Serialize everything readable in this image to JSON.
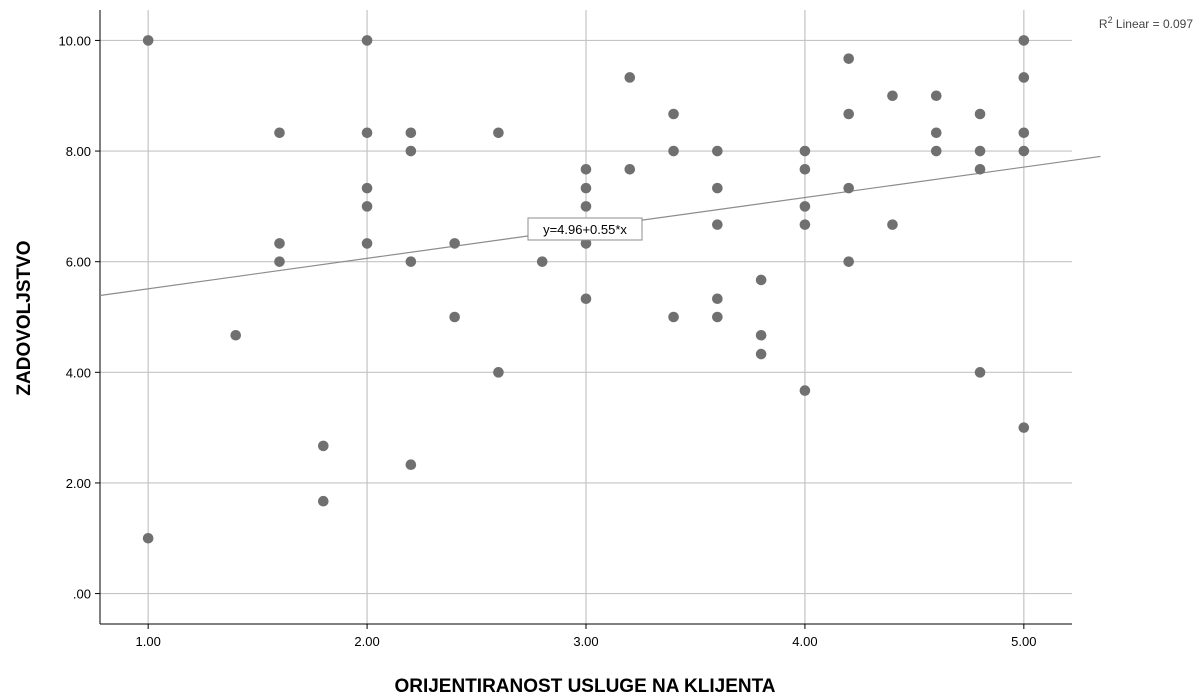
{
  "chart_data": {
    "type": "scatter",
    "title": "",
    "xlabel": "ORIJENTIRANOST USLUGE NA KLIJENTA",
    "ylabel": "ZADOVOLJSTVO",
    "xlim": [
      0.78,
      5.22
    ],
    "ylim": [
      -0.55,
      10.55
    ],
    "x_ticks": [
      "1.00",
      "2.00",
      "3.00",
      "4.00",
      "5.00"
    ],
    "y_ticks": [
      ".00",
      "2.00",
      "4.00",
      "6.00",
      "8.00",
      "10.00"
    ],
    "x_tick_values": [
      1,
      2,
      3,
      4,
      5
    ],
    "y_tick_values": [
      0,
      2,
      4,
      6,
      8,
      10
    ],
    "grid": true,
    "point_color": "#707070",
    "fit_line": {
      "intercept": 4.96,
      "slope": 0.55,
      "equation_label": "y=4.96+0.55*x",
      "r2_prefix": "R",
      "r2_sup": "2",
      "r2_label": " Linear = 0.097",
      "color": "#8c8c8c"
    },
    "points": [
      {
        "x": 1.0,
        "y": 10.0
      },
      {
        "x": 1.0,
        "y": 1.0
      },
      {
        "x": 1.4,
        "y": 4.67
      },
      {
        "x": 1.6,
        "y": 8.33
      },
      {
        "x": 1.6,
        "y": 6.33
      },
      {
        "x": 1.6,
        "y": 6.0
      },
      {
        "x": 1.8,
        "y": 2.67
      },
      {
        "x": 1.8,
        "y": 1.67
      },
      {
        "x": 2.0,
        "y": 10.0
      },
      {
        "x": 2.0,
        "y": 8.33
      },
      {
        "x": 2.0,
        "y": 7.33
      },
      {
        "x": 2.0,
        "y": 7.0
      },
      {
        "x": 2.0,
        "y": 6.33
      },
      {
        "x": 2.2,
        "y": 8.33
      },
      {
        "x": 2.2,
        "y": 8.0
      },
      {
        "x": 2.2,
        "y": 6.0
      },
      {
        "x": 2.2,
        "y": 2.33
      },
      {
        "x": 2.4,
        "y": 6.33
      },
      {
        "x": 2.4,
        "y": 5.0
      },
      {
        "x": 2.6,
        "y": 8.33
      },
      {
        "x": 2.6,
        "y": 4.0
      },
      {
        "x": 2.8,
        "y": 6.0
      },
      {
        "x": 3.0,
        "y": 7.67
      },
      {
        "x": 3.0,
        "y": 7.33
      },
      {
        "x": 3.0,
        "y": 7.0
      },
      {
        "x": 3.0,
        "y": 6.33
      },
      {
        "x": 3.0,
        "y": 5.33
      },
      {
        "x": 3.2,
        "y": 9.33
      },
      {
        "x": 3.2,
        "y": 7.67
      },
      {
        "x": 3.4,
        "y": 8.67
      },
      {
        "x": 3.4,
        "y": 8.0
      },
      {
        "x": 3.4,
        "y": 5.0
      },
      {
        "x": 3.6,
        "y": 8.0
      },
      {
        "x": 3.6,
        "y": 7.33
      },
      {
        "x": 3.6,
        "y": 6.67
      },
      {
        "x": 3.6,
        "y": 5.33
      },
      {
        "x": 3.6,
        "y": 5.0
      },
      {
        "x": 3.8,
        "y": 5.67
      },
      {
        "x": 3.8,
        "y": 4.67
      },
      {
        "x": 3.8,
        "y": 4.33
      },
      {
        "x": 4.0,
        "y": 8.0
      },
      {
        "x": 4.0,
        "y": 7.67
      },
      {
        "x": 4.0,
        "y": 7.0
      },
      {
        "x": 4.0,
        "y": 6.67
      },
      {
        "x": 4.0,
        "y": 3.67
      },
      {
        "x": 4.2,
        "y": 9.67
      },
      {
        "x": 4.2,
        "y": 8.67
      },
      {
        "x": 4.2,
        "y": 7.33
      },
      {
        "x": 4.2,
        "y": 6.0
      },
      {
        "x": 4.4,
        "y": 9.0
      },
      {
        "x": 4.4,
        "y": 6.67
      },
      {
        "x": 4.6,
        "y": 9.0
      },
      {
        "x": 4.6,
        "y": 8.33
      },
      {
        "x": 4.6,
        "y": 8.0
      },
      {
        "x": 4.8,
        "y": 8.67
      },
      {
        "x": 4.8,
        "y": 8.0
      },
      {
        "x": 4.8,
        "y": 7.67
      },
      {
        "x": 4.8,
        "y": 4.0
      },
      {
        "x": 5.0,
        "y": 10.0
      },
      {
        "x": 5.0,
        "y": 9.33
      },
      {
        "x": 5.0,
        "y": 8.33
      },
      {
        "x": 5.0,
        "y": 8.0
      },
      {
        "x": 5.0,
        "y": 3.0
      }
    ]
  }
}
